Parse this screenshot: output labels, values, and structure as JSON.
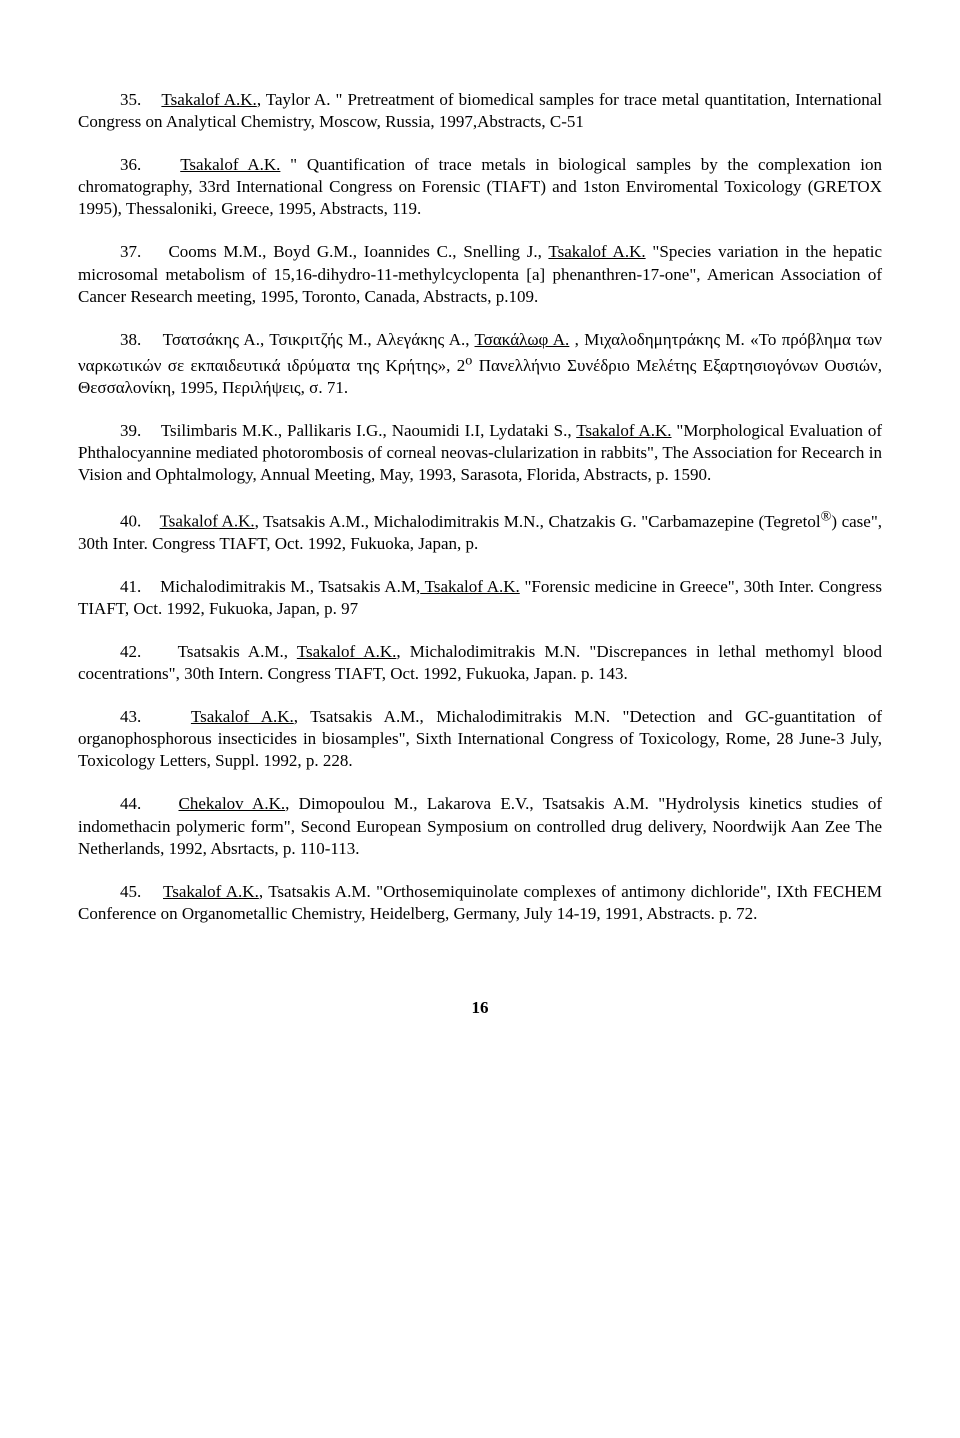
{
  "entries": [
    {
      "num": "35.",
      "lead_u": "Tsakalof A.K.",
      "rest": ", Taylor A. \" Pretreatment of biomedical samples for trace metal quantitation, International Congress on Analytical Chemistry, Moscow, Russia, 1997,Abstracts, C-51"
    },
    {
      "num": "36.",
      "lead_u": "Tsakalof A.K.",
      "rest": " \" Quantification of trace metals in biological samples by the complexation ion chromatography, 33rd International Congress on Forensic (TIAFT) and 1ston Enviromental Toxicology (GRETOX 1995), Thessaloniki, Greece, 1995, Abstracts, 119."
    },
    {
      "num": "37.",
      "pre": "Cooms M.M., Boyd G.M., Ioannides C., Snelling J., ",
      "lead_u": "Tsakalof A.K.",
      "rest": " \"Species variation in the hepatic microsomal metabolism of 15,16-dihydro-11-methylcyclopenta [a] phenanthren-17-one\", American Association of Cancer Research meeting, 1995, Toronto, Canada, Abstracts, p.109."
    },
    {
      "num": "38.",
      "pre": "Τσατσάκης Α., Τσικριτζής Μ., Αλεγάκης Α., ",
      "lead_u": "Τσακάλωφ Α.",
      "rest_html": " , Μιχαλοδημητράκης Μ. «Το πρόβλημα των ναρκωτικών σε εκπαιδευτικά ιδρύματα της Κρήτης», 2<sup>ο</sup> Πανελλήνιο Συνέδριο Μελέτης Εξαρτησιογόνων Ουσιών, Θεσσαλονίκη, 1995, Περιλήψεις, σ. 71."
    },
    {
      "num": "39.",
      "pre": "Tsilimbaris M.K., Pallikaris I.G., Naoumidi I.I, Lydataki S., ",
      "lead_u": "Tsakalof A.K.",
      "rest": " \"Morphological Evaluation of Phthalocyannine mediated photorombosis of corneal neovas-clularization in rabbits\", The Association for Recearch in Vision and Ophtalmology, Annual Meeting, May, 1993, Sarasota, Florida, Abstracts, p. 1590."
    },
    {
      "num": "40.",
      "lead_u": "Tsakalof A.K.",
      "rest_html": ", Tsatsakis A.M., Michalodimitrakis M.N., Chatzakis G. \"Carbamazepine (Tegretol<sup>®</sup>) case\", 30th Inter. Congress TIAFT, Oct. 1992, Fukuoka, Japan, p."
    },
    {
      "num": "41.",
      "pre": "Michalodimitrakis M., Tsatsakis A.M,",
      "lead_u": " Tsakalof A.K.",
      "rest": " \"Forensic medicine in Greece\", 30th Inter. Congress TIAFT, Oct. 1992, Fukuoka, Japan, p. 97"
    },
    {
      "num": "42.",
      "pre": "Tsatsakis A.M., ",
      "lead_u": "Tsakalof A.K.",
      "rest": ", Michalodimitrakis M.N. \"Discrepances in lethal methomyl blood cocentrations\", 30th Intern. Congress TIAFT, Oct. 1992, Fukuoka, Japan. p. 143."
    },
    {
      "num": "43.",
      "lead_u": "Tsakalof A.K.",
      "rest": ", Tsatsakis A.M., Michalodimitrakis M.N. \"Detection and GC-guantitation of organophosphorous insecticides in biosamples\", Sixth International Congress of Toxicology, Rome, 28 June-3 July, Toxicology Letters, Suppl. 1992, p. 228."
    },
    {
      "num": "44.",
      "lead_u": "Chekalov A.K.",
      "rest": ", Dimopoulou M., Lakarova E.V., Tsatsakis A.M. \"Hydrolysis kinetics studies of indomethacin polymeric form\", Second European Symposium on controlled drug delivery, Noordwijk Aan Zee The Netherlands, 1992, Absrtacts, p. 110-113."
    },
    {
      "num": "45.",
      "lead_u": "Tsakalof A.K.",
      "rest": ", Tsatsakis A.M. \"Orthosemiquinolate complexes of antimony dichloride\", IXth FECHEM Conference on Organometallic Chemistry, Heidelberg, Germany, July 14-19, 1991, Abstracts. p. 72."
    }
  ],
  "page_number": "16"
}
